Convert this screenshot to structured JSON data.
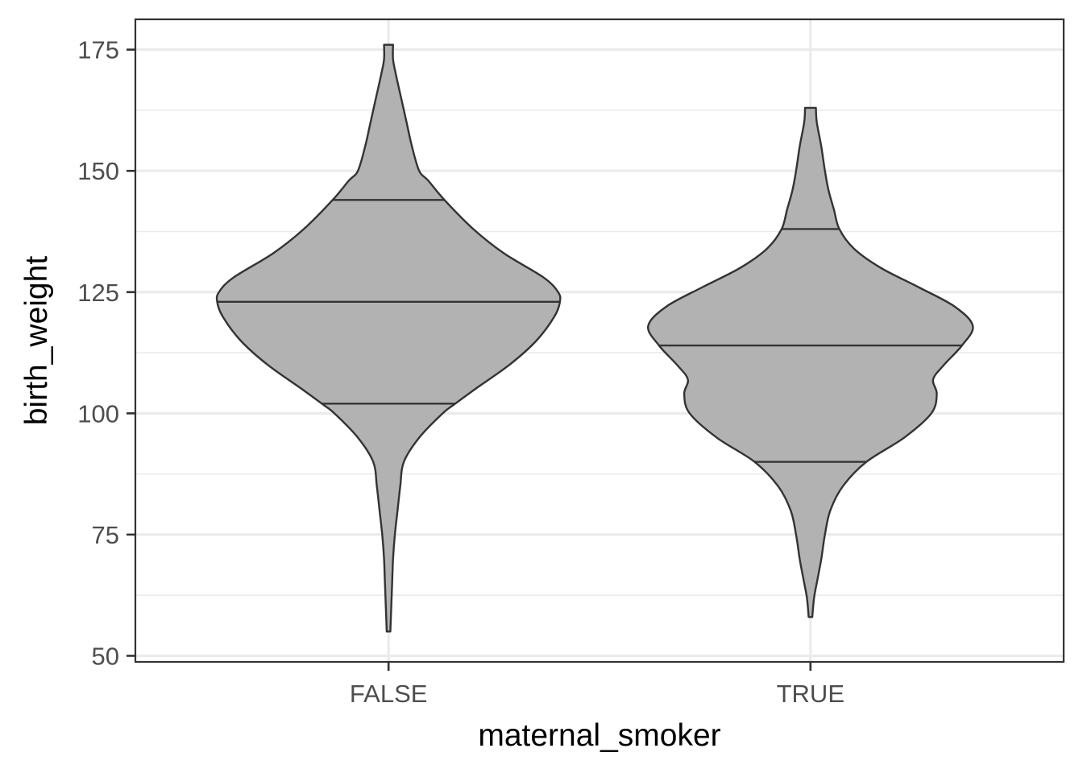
{
  "chart_data": {
    "type": "violin",
    "xlabel": "maternal_smoker",
    "ylabel": "birth_weight",
    "categories": [
      "FALSE",
      "TRUE"
    ],
    "ylim": [
      48.75,
      181.25
    ],
    "y_ticks": [
      50,
      75,
      100,
      125,
      150,
      175
    ],
    "y_minor_ticks": [
      62.5,
      87.5,
      112.5,
      137.5,
      162.5
    ],
    "grid": true,
    "fill_color": "#b2b2b2",
    "outline_color": "#333333",
    "violins": [
      {
        "category": "FALSE",
        "min": 55,
        "max": 176,
        "quantiles": {
          "q25": 102,
          "median": 123,
          "q75": 144
        },
        "density_profile": [
          [
            55,
            0.01
          ],
          [
            60,
            0.015
          ],
          [
            65,
            0.02
          ],
          [
            70,
            0.025
          ],
          [
            75,
            0.035
          ],
          [
            80,
            0.05
          ],
          [
            85,
            0.065
          ],
          [
            90,
            0.085
          ],
          [
            95,
            0.17
          ],
          [
            100,
            0.3
          ],
          [
            102,
            0.37
          ],
          [
            105,
            0.48
          ],
          [
            110,
            0.67
          ],
          [
            115,
            0.82
          ],
          [
            120,
            0.92
          ],
          [
            123,
            0.95
          ],
          [
            125,
            0.94
          ],
          [
            128,
            0.86
          ],
          [
            133,
            0.64
          ],
          [
            138,
            0.47
          ],
          [
            144,
            0.31
          ],
          [
            148,
            0.22
          ],
          [
            150,
            0.17
          ],
          [
            155,
            0.13
          ],
          [
            160,
            0.1
          ],
          [
            165,
            0.07
          ],
          [
            170,
            0.04
          ],
          [
            173,
            0.025
          ],
          [
            176,
            0.025
          ]
        ]
      },
      {
        "category": "TRUE",
        "min": 58,
        "max": 163,
        "quantiles": {
          "q25": 90,
          "median": 114,
          "q75": 138
        },
        "density_profile": [
          [
            58,
            0.01
          ],
          [
            62,
            0.02
          ],
          [
            66,
            0.04
          ],
          [
            70,
            0.06
          ],
          [
            75,
            0.08
          ],
          [
            80,
            0.11
          ],
          [
            85,
            0.18
          ],
          [
            90,
            0.31
          ],
          [
            95,
            0.52
          ],
          [
            100,
            0.67
          ],
          [
            104,
            0.7
          ],
          [
            107,
            0.68
          ],
          [
            110,
            0.74
          ],
          [
            114,
            0.84
          ],
          [
            118,
            0.9
          ],
          [
            122,
            0.8
          ],
          [
            126,
            0.6
          ],
          [
            130,
            0.39
          ],
          [
            134,
            0.24
          ],
          [
            138,
            0.16
          ],
          [
            142,
            0.13
          ],
          [
            146,
            0.1
          ],
          [
            150,
            0.08
          ],
          [
            155,
            0.06
          ],
          [
            160,
            0.035
          ],
          [
            163,
            0.03
          ]
        ]
      }
    ]
  }
}
